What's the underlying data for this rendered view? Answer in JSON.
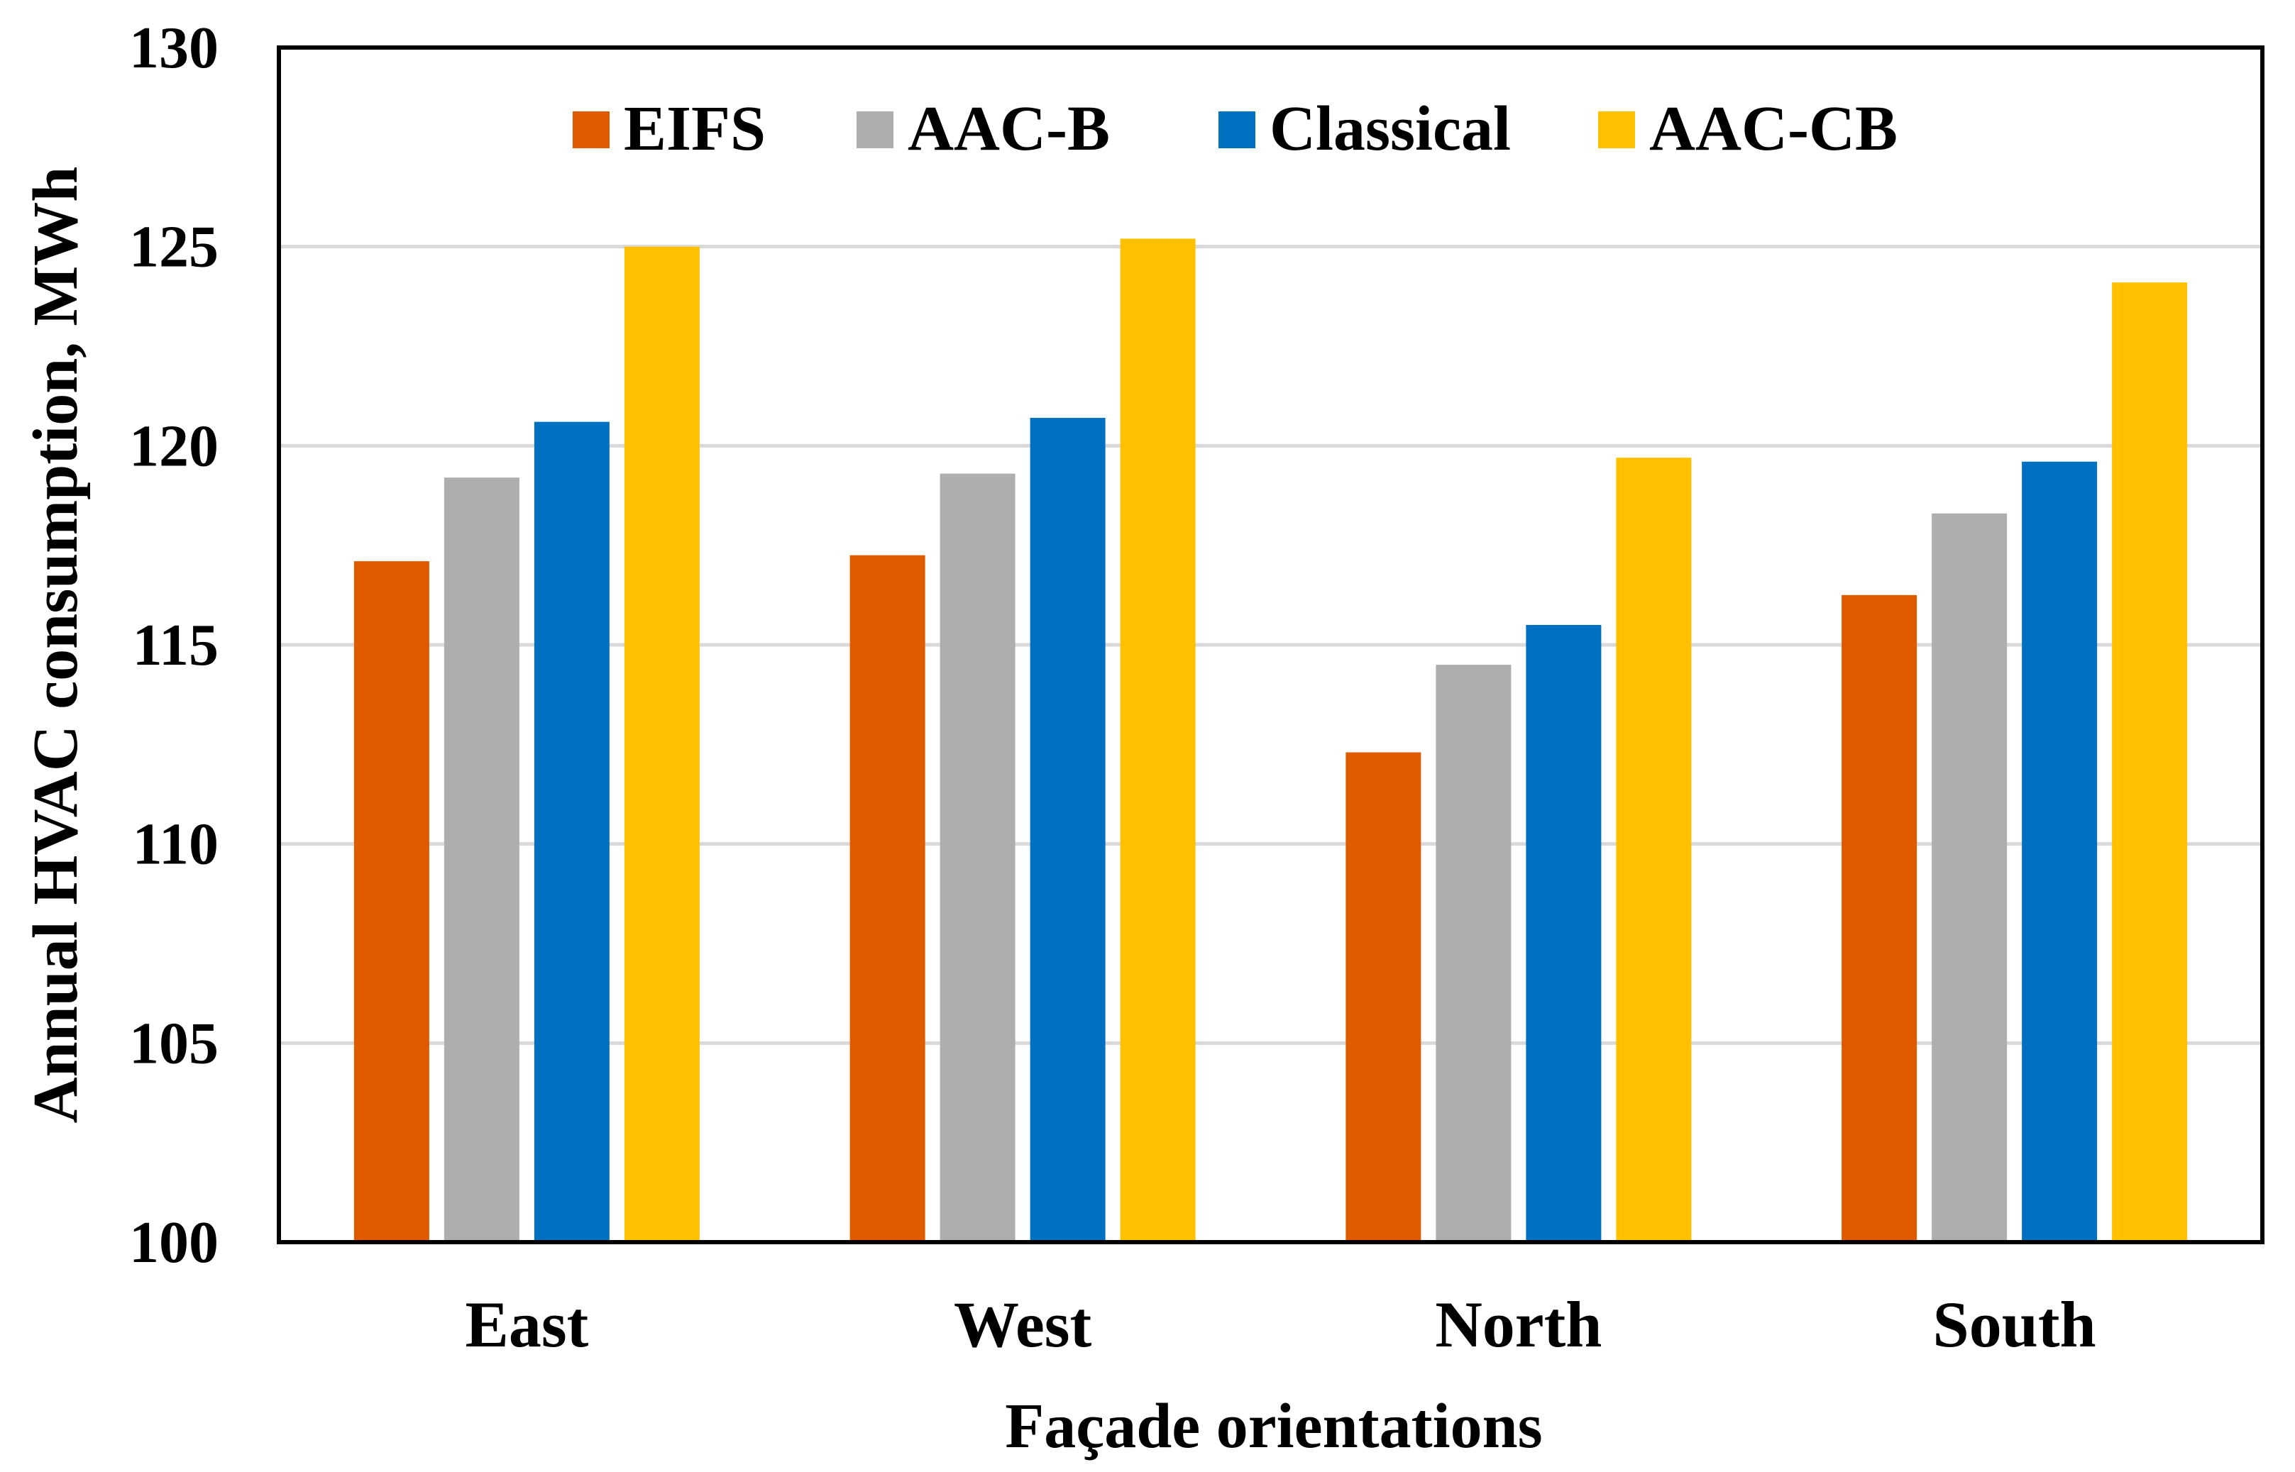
{
  "chart_data": {
    "type": "bar",
    "title": "",
    "xlabel": "Façade orientations",
    "ylabel": "Annual HVAC consumption, MWh",
    "categories": [
      "East",
      "West",
      "North",
      "South"
    ],
    "series": [
      {
        "name": "EIFS",
        "color": "#E05A00",
        "values": [
          117.1,
          117.25,
          112.3,
          116.25
        ]
      },
      {
        "name": "AAC-B",
        "color": "#B0AEAD",
        "values": [
          119.2,
          119.3,
          114.5,
          118.3
        ]
      },
      {
        "name": "Classical",
        "color": "#0070C0",
        "values": [
          120.6,
          120.7,
          115.5,
          119.6
        ]
      },
      {
        "name": "AAC-CB",
        "color": "#FFC000",
        "values": [
          125.0,
          125.2,
          119.7,
          124.1
        ]
      }
    ],
    "ylim": [
      100,
      130
    ],
    "yticks": [
      "100",
      "105",
      "110",
      "115",
      "120",
      "125",
      "130"
    ],
    "grid": true,
    "legend_position": "top-center",
    "gridline_color": "#D9D9D9"
  }
}
